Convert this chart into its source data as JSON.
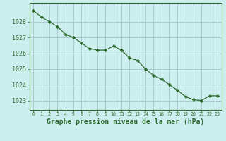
{
  "x": [
    0,
    1,
    2,
    3,
    4,
    5,
    6,
    7,
    8,
    9,
    10,
    11,
    12,
    13,
    14,
    15,
    16,
    17,
    18,
    19,
    20,
    21,
    22,
    23
  ],
  "y": [
    1028.7,
    1028.3,
    1028.0,
    1027.7,
    1027.2,
    1027.0,
    1026.65,
    1026.3,
    1026.2,
    1026.2,
    1026.45,
    1026.2,
    1025.7,
    1025.55,
    1025.0,
    1024.6,
    1024.35,
    1024.0,
    1023.65,
    1023.25,
    1023.05,
    1023.0,
    1023.3,
    1023.3
  ],
  "line_color": "#2d6a2d",
  "marker": "D",
  "marker_size": 2.2,
  "background_color": "#cceeee",
  "grid_color": "#aacccc",
  "xlabel": "Graphe pression niveau de la mer (hPa)",
  "xlabel_fontsize": 7,
  "ylabel_ticks": [
    1023,
    1024,
    1025,
    1026,
    1027,
    1028
  ],
  "xtick_labels": [
    "0",
    "1",
    "2",
    "3",
    "4",
    "5",
    "6",
    "7",
    "8",
    "9",
    "10",
    "11",
    "12",
    "13",
    "14",
    "15",
    "16",
    "17",
    "18",
    "19",
    "20",
    "21",
    "22",
    "23"
  ],
  "ylim": [
    1022.4,
    1029.2
  ],
  "xlim": [
    -0.5,
    23.5
  ]
}
